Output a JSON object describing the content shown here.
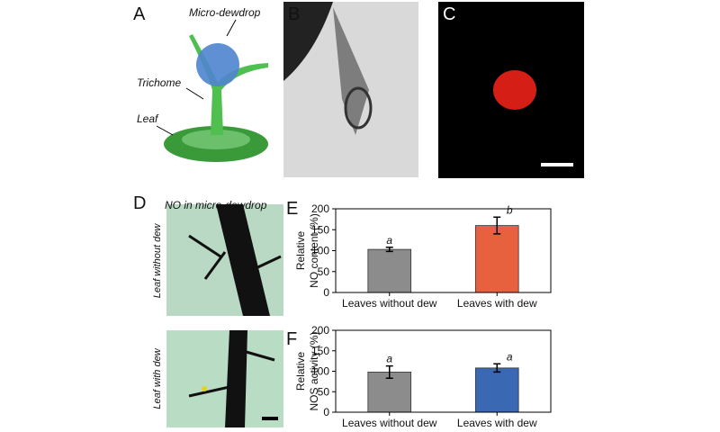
{
  "figure": {
    "panels": [
      "A",
      "B",
      "C",
      "D",
      "E",
      "F"
    ],
    "labels_a": {
      "dewdrop": "Micro-dewdrop",
      "trichome": "Trichome",
      "leaf": "Leaf"
    },
    "labels_d": {
      "title": "NO in micro-dewdrop",
      "without": "Leaf without dew",
      "with": "Leaf with dew"
    }
  },
  "chart_data": [
    {
      "type": "bar",
      "ylabel": [
        "Relative",
        "NO content (%)"
      ],
      "categories": [
        "Leaves without dew",
        "Leaves with dew"
      ],
      "values": [
        103,
        160
      ],
      "errors": [
        5,
        20
      ],
      "annotations": [
        "a",
        "b"
      ],
      "colors": [
        "#8c8c8c",
        "#e8613f"
      ],
      "ylim": [
        0,
        200
      ],
      "yticks": [
        0,
        50,
        100,
        150,
        200
      ]
    },
    {
      "type": "bar",
      "ylabel": [
        "Relative",
        "NOS activity (%)"
      ],
      "categories": [
        "Leaves without dew",
        "Leaves with dew"
      ],
      "values": [
        98,
        108
      ],
      "errors": [
        15,
        10
      ],
      "annotations": [
        "a",
        "a"
      ],
      "colors": [
        "#8c8c8c",
        "#3a68b3"
      ],
      "ylim": [
        0,
        200
      ],
      "yticks": [
        0,
        50,
        100,
        150,
        200
      ]
    }
  ]
}
